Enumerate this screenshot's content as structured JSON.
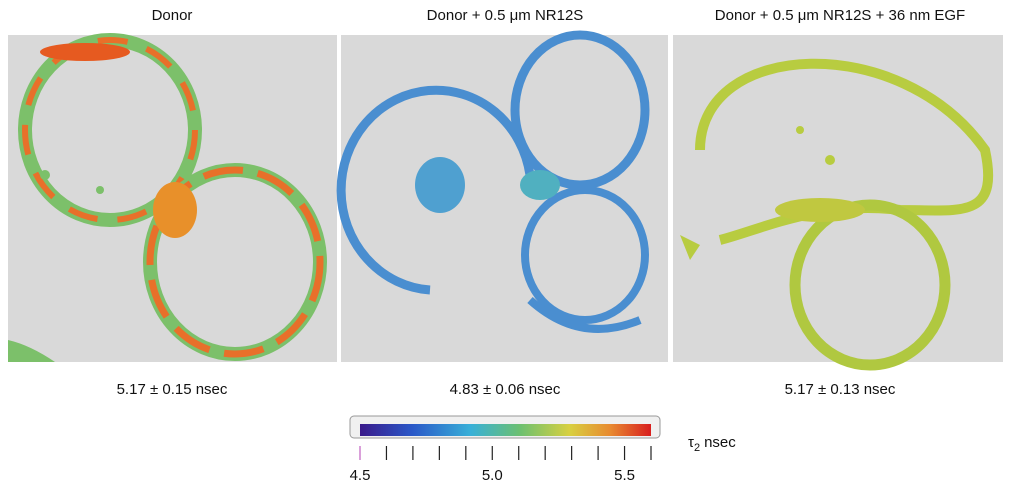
{
  "panels": [
    {
      "title": "Donor",
      "lifetime": "5.17 ± 0.15 nsec"
    },
    {
      "title": "Donor + 0.5 μm NR12S",
      "lifetime": "4.83 ± 0.06 nsec"
    },
    {
      "title": "Donor + 0.5 μm NR12S + 36 nm EGF",
      "lifetime": "5.17 ± 0.13 nsec"
    }
  ],
  "colorbar": {
    "label": "τ",
    "label_subscript": "2",
    "label_unit": "nsec",
    "lim": [
      4.5,
      5.6
    ],
    "ticks": [
      4.5,
      {
        "value": 5,
        "label": "5.0"
      },
      5.5
    ],
    "minor_ticks": [
      4.5,
      4.6,
      4.7,
      4.8,
      4.9,
      5.0,
      5.1,
      5.2,
      5.3,
      5.4,
      5.5,
      5.6
    ]
  }
}
